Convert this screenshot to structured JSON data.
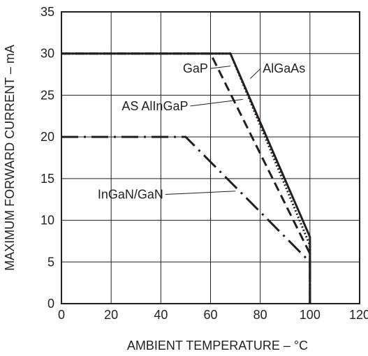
{
  "chart_data": {
    "type": "line",
    "xlabel": "AMBIENT TEMPERATURE – °C",
    "ylabel": "MAXIMUM FORWARD CURRENT – mA",
    "xlim": [
      0,
      120
    ],
    "ylim": [
      0,
      35
    ],
    "xticks": [
      0,
      20,
      40,
      60,
      80,
      100,
      120
    ],
    "yticks": [
      0,
      5,
      10,
      15,
      20,
      25,
      30,
      35
    ],
    "grid": true,
    "series": [
      {
        "name": "AlGaAs",
        "style": "solid",
        "x": [
          0,
          68,
          100,
          100
        ],
        "y": [
          30,
          30,
          8,
          0
        ]
      },
      {
        "name": "GaP",
        "style": "dotted",
        "x": [
          0,
          68,
          100,
          100
        ],
        "y": [
          30,
          30,
          7,
          0
        ]
      },
      {
        "name": "AS AlInGaP",
        "style": "dashed",
        "x": [
          0,
          60,
          100,
          100
        ],
        "y": [
          30,
          30,
          6,
          0
        ]
      },
      {
        "name": "InGaN/GaN",
        "style": "dashdot",
        "x": [
          0,
          50,
          100,
          100
        ],
        "y": [
          20,
          20,
          5,
          0
        ]
      }
    ],
    "annotations": [
      {
        "text": "GaP",
        "x": 59,
        "y": 27.7,
        "target_x": 68,
        "target_y": 28.5,
        "anchor": "end"
      },
      {
        "text": "AlGaAs",
        "x": 81,
        "y": 27.7,
        "target_x": 76,
        "target_y": 27,
        "anchor": "start"
      },
      {
        "text": "AS AlInGaP",
        "x": 51,
        "y": 23.2,
        "target_x": 73,
        "target_y": 24.5,
        "anchor": "end"
      },
      {
        "text": "InGaN/GaN",
        "x": 41,
        "y": 12.6,
        "target_x": 70,
        "target_y": 13.5,
        "anchor": "end"
      }
    ]
  }
}
